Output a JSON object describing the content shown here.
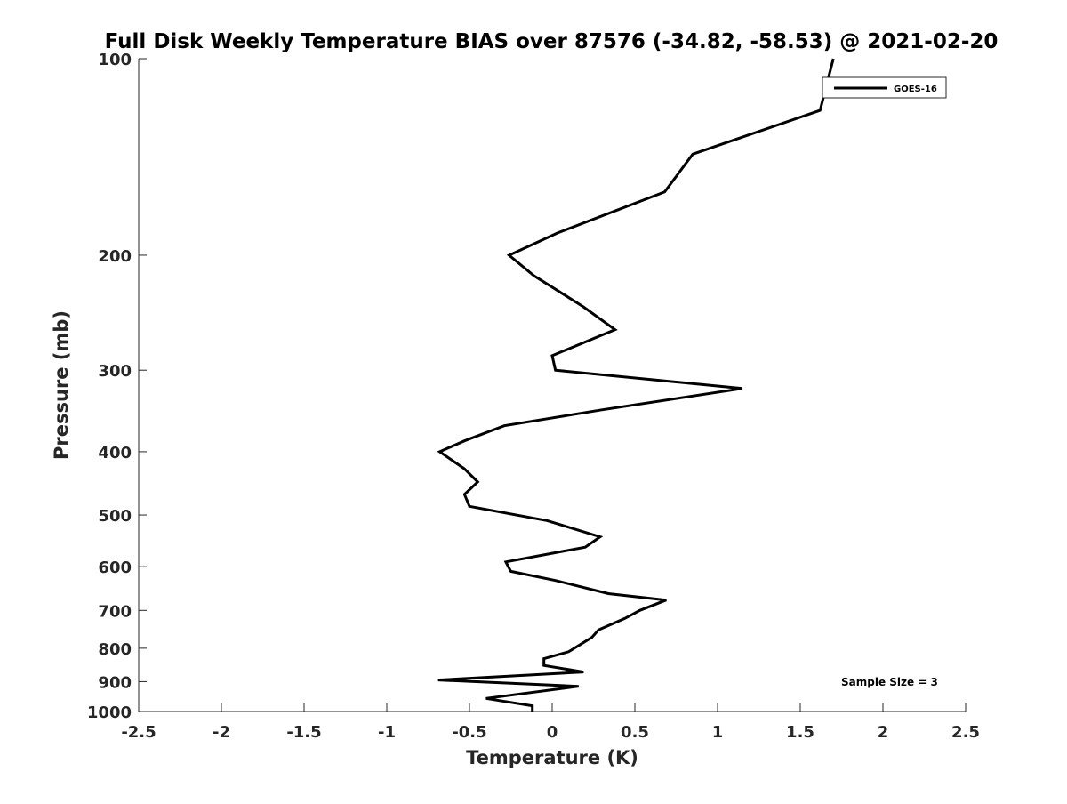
{
  "chart_data": {
    "type": "line",
    "title": "Full Disk Weekly Temperature BIAS over 87576 (-34.82, -58.53) @ 2021-02-20",
    "xlabel": "Temperature (K)",
    "ylabel": "Pressure (mb)",
    "xlim": [
      -2.5,
      2.5
    ],
    "ylim": [
      100,
      1000
    ],
    "y_scale": "log",
    "y_reversed": true,
    "x_ticks": [
      -2.5,
      -2,
      -1.5,
      -1,
      -0.5,
      0,
      0.5,
      1,
      1.5,
      2,
      2.5
    ],
    "x_tick_labels": [
      "-2.5",
      "-2",
      "-1.5",
      "-1",
      "-0.5",
      "0",
      "0.5",
      "1",
      "1.5",
      "2",
      "2.5"
    ],
    "y_ticks": [
      100,
      200,
      300,
      400,
      500,
      600,
      700,
      800,
      900,
      1000
    ],
    "y_tick_labels": [
      "100",
      "200",
      "300",
      "400",
      "500",
      "600",
      "700",
      "800",
      "900",
      "1000"
    ],
    "grid": false,
    "legend_position": "top-right",
    "annotation": "Sample Size = 3",
    "colors": {
      "line": "#000000",
      "axes": "#262626"
    },
    "series": [
      {
        "name": "GOES-16",
        "points": [
          [
            1.7,
            100
          ],
          [
            1.62,
            120
          ],
          [
            0.85,
            140
          ],
          [
            0.68,
            160
          ],
          [
            0.03,
            185
          ],
          [
            -0.26,
            200
          ],
          [
            -0.11,
            215
          ],
          [
            0.19,
            240
          ],
          [
            0.38,
            260
          ],
          [
            0.0,
            285
          ],
          [
            0.02,
            300
          ],
          [
            1.15,
            320
          ],
          [
            0.3,
            345
          ],
          [
            -0.29,
            365
          ],
          [
            -0.53,
            385
          ],
          [
            -0.68,
            400
          ],
          [
            -0.53,
            425
          ],
          [
            -0.45,
            445
          ],
          [
            -0.53,
            465
          ],
          [
            -0.5,
            485
          ],
          [
            -0.03,
            510
          ],
          [
            0.29,
            540
          ],
          [
            0.2,
            560
          ],
          [
            -0.28,
            590
          ],
          [
            -0.25,
            610
          ],
          [
            0.02,
            630
          ],
          [
            0.34,
            660
          ],
          [
            0.69,
            675
          ],
          [
            0.53,
            700
          ],
          [
            0.44,
            720
          ],
          [
            0.28,
            750
          ],
          [
            0.24,
            770
          ],
          [
            0.1,
            810
          ],
          [
            -0.05,
            830
          ],
          [
            -0.05,
            850
          ],
          [
            0.19,
            870
          ],
          [
            -0.69,
            895
          ],
          [
            0.16,
            915
          ],
          [
            -0.4,
            955
          ],
          [
            -0.12,
            980
          ],
          [
            -0.12,
            1000
          ]
        ]
      }
    ]
  }
}
